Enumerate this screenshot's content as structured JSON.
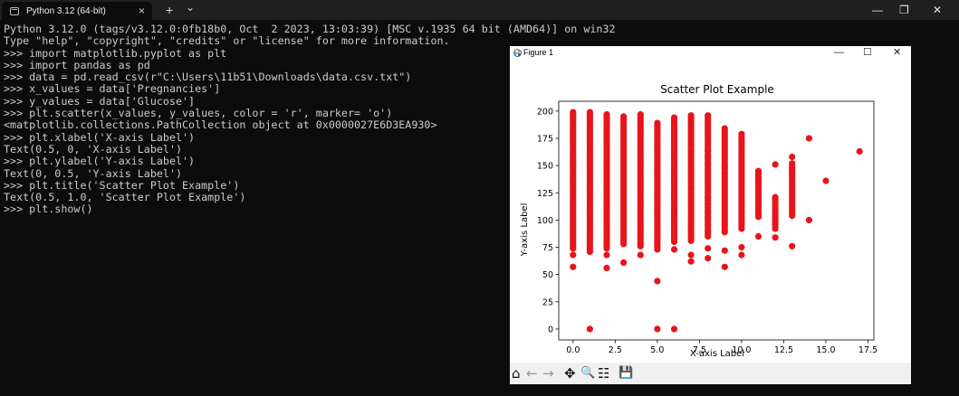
{
  "terminal": {
    "tab_title": "Python 3.12 (64-bit)",
    "tab_close": "×",
    "new_tab": "+",
    "dropdown": "⌄",
    "win_min": "—",
    "win_max": "❐",
    "win_close": "✕",
    "lines": [
      "Python 3.12.0 (tags/v3.12.0:0fb18b0, Oct  2 2023, 13:03:39) [MSC v.1935 64 bit (AMD64)] on win32",
      "Type \"help\", \"copyright\", \"credits\" or \"license\" for more information.",
      ">>> import matplotlib.pyplot as plt",
      ">>> import pandas as pd",
      ">>> data = pd.read_csv(r\"C:\\Users\\11b51\\Downloads\\data.csv.txt\")",
      ">>> x_values = data['Pregnancies']",
      ">>> y_values = data['Glucose']",
      ">>> plt.scatter(x_values, y_values, color = 'r', marker= 'o')",
      "<matplotlib.collections.PathCollection object at 0x0000027E6D3EA930>",
      ">>> plt.xlabel('X-axis Label')",
      "Text(0.5, 0, 'X-axis Label')",
      ">>> plt.ylabel('Y-axis Label')",
      "Text(0, 0.5, 'Y-axis Label')",
      ">>> plt.title('Scatter Plot Example')",
      "Text(0.5, 1.0, 'Scatter Plot Example')",
      ">>> plt.show()"
    ]
  },
  "figure": {
    "window_title": "Figure 1",
    "min": "—",
    "max": "☐",
    "close": "✕",
    "toolbar": {
      "home": "⌂",
      "back": "←",
      "forward": "→",
      "pan": "✥",
      "zoom": "🔍",
      "configure": "☷",
      "save": "💾"
    }
  },
  "chart_data": {
    "type": "scatter",
    "title": "Scatter Plot Example",
    "xlabel": "X-axis Label",
    "ylabel": "Y-axis Label",
    "xlim": [
      -0.85,
      17.85
    ],
    "ylim": [
      -10,
      209
    ],
    "xticks": [
      "0.0",
      "2.5",
      "5.0",
      "7.5",
      "10.0",
      "12.5",
      "15.0",
      "17.5"
    ],
    "yticks": [
      "0",
      "25",
      "50",
      "75",
      "100",
      "125",
      "150",
      "175",
      "200"
    ],
    "color": "#e8141b",
    "columns": [
      {
        "x": 0,
        "ymin": 74,
        "ymax": 199,
        "extra": [
          57,
          68
        ]
      },
      {
        "x": 1,
        "ymin": 71,
        "ymax": 199,
        "extra": [
          0
        ]
      },
      {
        "x": 2,
        "ymin": 74,
        "ymax": 197,
        "extra": [
          56,
          68
        ]
      },
      {
        "x": 3,
        "ymin": 78,
        "ymax": 195,
        "extra": [
          61
        ]
      },
      {
        "x": 4,
        "ymin": 76,
        "ymax": 197,
        "extra": [
          68
        ]
      },
      {
        "x": 5,
        "ymin": 73,
        "ymax": 189,
        "extra": [
          44,
          0
        ]
      },
      {
        "x": 6,
        "ymin": 80,
        "ymax": 194,
        "extra": [
          0,
          73
        ]
      },
      {
        "x": 7,
        "ymin": 81,
        "ymax": 196,
        "extra": [
          62,
          68
        ]
      },
      {
        "x": 8,
        "ymin": 85,
        "ymax": 196,
        "extra": [
          65,
          74
        ]
      },
      {
        "x": 9,
        "ymin": 89,
        "ymax": 184,
        "extra": [
          57,
          72
        ]
      },
      {
        "x": 10,
        "ymin": 92,
        "ymax": 179,
        "extra": [
          68,
          75
        ]
      },
      {
        "x": 11,
        "ymin": 103,
        "ymax": 145,
        "extra": [
          85,
          136,
          143
        ]
      },
      {
        "x": 12,
        "ymin": 92,
        "ymax": 121,
        "extra": [
          84,
          100,
          151
        ]
      },
      {
        "x": 13,
        "ymin": 104,
        "ymax": 152,
        "extra": [
          76,
          126,
          145,
          158
        ]
      },
      {
        "x": 14,
        "ymin": 100,
        "ymax": 100,
        "extra": [
          175
        ]
      },
      {
        "x": 15,
        "ymin": 136,
        "ymax": 136,
        "extra": []
      },
      {
        "x": 17,
        "ymin": 163,
        "ymax": 163,
        "extra": []
      }
    ]
  }
}
